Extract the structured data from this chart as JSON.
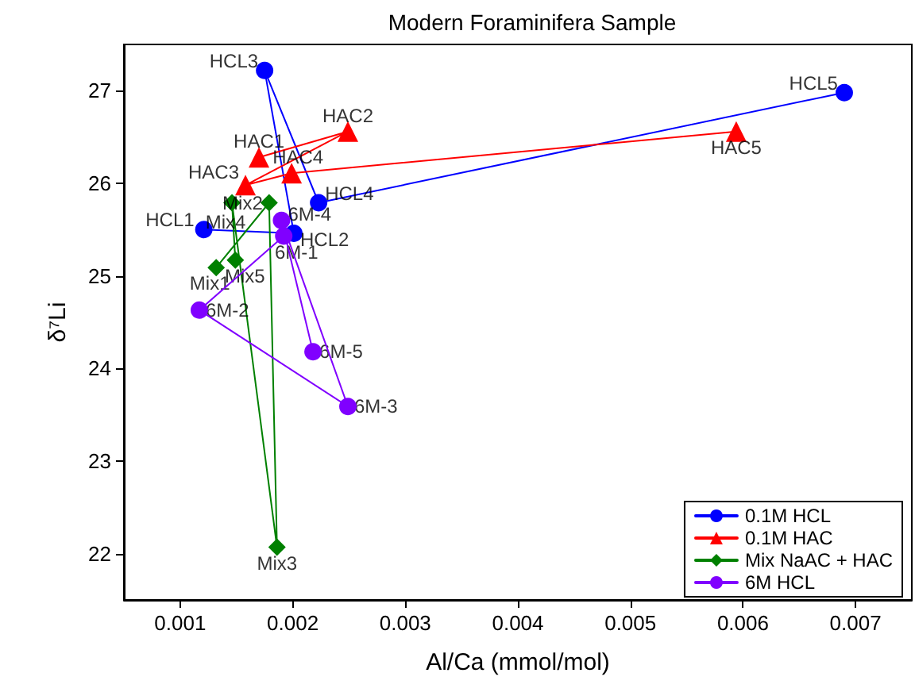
{
  "chart_data": {
    "type": "line",
    "title": "Modern Foraminifera Sample",
    "xlabel": "Al/Ca (mmol/mol)",
    "ylabel": "δ⁷Li",
    "xlim": [
      0.0005,
      0.0075
    ],
    "xticks": [
      0.001,
      0.002,
      0.003,
      0.004,
      0.005,
      0.006,
      0.007
    ],
    "ylim": [
      21.5,
      27.5
    ],
    "yticks": [
      22,
      23,
      24,
      25,
      26,
      27
    ],
    "grid": false,
    "legend": "bottom right",
    "line_style": "solid",
    "series": [
      {
        "name": "0.1M HCL",
        "color": "#0000ff",
        "marker": "circle",
        "x": [
          0.00121,
          0.00201,
          0.00175,
          0.00223,
          0.0069
        ],
        "values": [
          25.5,
          25.46,
          27.22,
          25.79,
          26.98
        ]
      },
      {
        "name": "0.1M HAC",
        "color": "#ff0000",
        "marker": "triangle",
        "x": [
          0.0017,
          0.00249,
          0.00158,
          0.00199,
          0.00594
        ],
        "values": [
          26.28,
          26.56,
          25.98,
          26.11,
          26.56
        ]
      },
      {
        "name": "Mix NaAC + HAC",
        "color": "#008000",
        "marker": "diamond",
        "x": [
          0.00132,
          0.00179,
          0.00186,
          0.00146,
          0.00149
        ],
        "values": [
          25.09,
          25.79,
          22.07,
          25.79,
          25.17
        ]
      },
      {
        "name": "6M HCL",
        "color": "#8000ff",
        "marker": "circle",
        "x": [
          0.00192,
          0.00117,
          0.00249,
          0.0019,
          0.00218
        ],
        "values": [
          25.43,
          24.63,
          23.59,
          25.6,
          24.18
        ]
      }
    ],
    "annotations": [
      {
        "text": "HCL1",
        "x": 0.00121,
        "y": 25.5
      },
      {
        "text": "HCL2",
        "x": 0.00201,
        "y": 25.46
      },
      {
        "text": "HCL3",
        "x": 0.00175,
        "y": 27.22
      },
      {
        "text": "HCL4",
        "x": 0.00223,
        "y": 25.79
      },
      {
        "text": "HCL5",
        "x": 0.0069,
        "y": 26.98
      },
      {
        "text": "HAC1",
        "x": 0.0017,
        "y": 26.28
      },
      {
        "text": "HAC2",
        "x": 0.00249,
        "y": 26.56
      },
      {
        "text": "HAC3",
        "x": 0.00158,
        "y": 25.98
      },
      {
        "text": "HAC4",
        "x": 0.00199,
        "y": 26.11
      },
      {
        "text": "HAC5",
        "x": 0.00594,
        "y": 26.56
      },
      {
        "text": "Mix1",
        "x": 0.00132,
        "y": 25.09
      },
      {
        "text": "Mix2",
        "x": 0.00179,
        "y": 25.79
      },
      {
        "text": "Mix3",
        "x": 0.00186,
        "y": 22.07
      },
      {
        "text": "Mix4",
        "x": 0.00146,
        "y": 25.79
      },
      {
        "text": "Mix5",
        "x": 0.00149,
        "y": 25.17
      },
      {
        "text": "6M-1",
        "x": 0.00192,
        "y": 25.43
      },
      {
        "text": "6M-2",
        "x": 0.00117,
        "y": 24.63
      },
      {
        "text": "6M-3",
        "x": 0.00249,
        "y": 23.59
      },
      {
        "text": "6M-4",
        "x": 0.0019,
        "y": 25.6
      },
      {
        "text": "6M-5",
        "x": 0.00218,
        "y": 24.18
      }
    ]
  }
}
